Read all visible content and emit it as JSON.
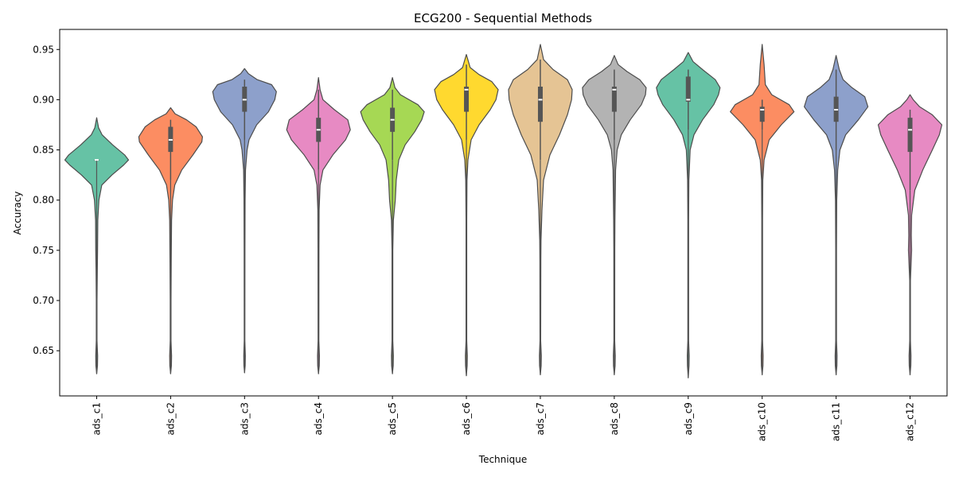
{
  "chart_data": {
    "type": "violin",
    "title": "ECG200 - Sequential Methods",
    "xlabel": "Technique",
    "ylabel": "Accuracy",
    "ylim": [
      0.605,
      0.97
    ],
    "yticks": [
      0.65,
      0.7,
      0.75,
      0.8,
      0.85,
      0.9,
      0.95
    ],
    "ytick_labels": [
      "0.65",
      "0.70",
      "0.75",
      "0.80",
      "0.85",
      "0.90",
      "0.95"
    ],
    "grid": false,
    "categories": [
      "ads_c1",
      "ads_c2",
      "ads_c3",
      "ads_c4",
      "ads_c5",
      "ads_c6",
      "ads_c7",
      "ads_c8",
      "ads_c9",
      "ads_c10",
      "ads_c11",
      "ads_c12"
    ],
    "colors": [
      "#66c2a5",
      "#fc8d62",
      "#8da0cb",
      "#e78ac3",
      "#a6d854",
      "#ffd92f",
      "#e5c494",
      "#b3b3b3",
      "#66c2a5",
      "#fc8d62",
      "#8da0cb",
      "#e78ac3"
    ],
    "violins": [
      {
        "min": 0.64,
        "q1": 0.84,
        "median": 0.84,
        "q3": 0.84,
        "max": 0.87,
        "whisker_low": 0.84,
        "whisker_high": 0.84,
        "tail_low": 0.627,
        "tail_high": 0.882,
        "density": [
          [
            0.627,
            0
          ],
          [
            0.635,
            0.025
          ],
          [
            0.645,
            0.03
          ],
          [
            0.66,
            0.012
          ],
          [
            0.7,
            0.012
          ],
          [
            0.73,
            0.02
          ],
          [
            0.75,
            0.028
          ],
          [
            0.78,
            0.035
          ],
          [
            0.8,
            0.07
          ],
          [
            0.815,
            0.16
          ],
          [
            0.825,
            0.48
          ],
          [
            0.835,
            0.85
          ],
          [
            0.84,
            1.0
          ],
          [
            0.845,
            0.88
          ],
          [
            0.855,
            0.5
          ],
          [
            0.865,
            0.17
          ],
          [
            0.872,
            0.06
          ],
          [
            0.882,
            0
          ]
        ]
      },
      {
        "min": 0.64,
        "q1": 0.848,
        "median": 0.86,
        "q3": 0.873,
        "max": 0.88,
        "whisker_low": 0.82,
        "whisker_high": 0.88,
        "tail_low": 0.627,
        "tail_high": 0.892,
        "density": [
          [
            0.627,
            0
          ],
          [
            0.635,
            0.025
          ],
          [
            0.645,
            0.03
          ],
          [
            0.66,
            0.012
          ],
          [
            0.7,
            0.012
          ],
          [
            0.74,
            0.02
          ],
          [
            0.78,
            0.03
          ],
          [
            0.8,
            0.06
          ],
          [
            0.815,
            0.13
          ],
          [
            0.83,
            0.35
          ],
          [
            0.845,
            0.7
          ],
          [
            0.858,
            0.98
          ],
          [
            0.863,
            1.0
          ],
          [
            0.873,
            0.8
          ],
          [
            0.88,
            0.5
          ],
          [
            0.886,
            0.14
          ],
          [
            0.892,
            0
          ]
        ]
      },
      {
        "min": 0.64,
        "q1": 0.888,
        "median": 0.9,
        "q3": 0.913,
        "max": 0.92,
        "whisker_low": 0.86,
        "whisker_high": 0.92,
        "tail_low": 0.628,
        "tail_high": 0.931,
        "density": [
          [
            0.628,
            0
          ],
          [
            0.635,
            0.02
          ],
          [
            0.645,
            0.025
          ],
          [
            0.66,
            0.01
          ],
          [
            0.75,
            0.012
          ],
          [
            0.8,
            0.018
          ],
          [
            0.83,
            0.03
          ],
          [
            0.85,
            0.08
          ],
          [
            0.86,
            0.14
          ],
          [
            0.875,
            0.38
          ],
          [
            0.888,
            0.75
          ],
          [
            0.9,
            0.95
          ],
          [
            0.908,
            1.0
          ],
          [
            0.915,
            0.85
          ],
          [
            0.92,
            0.4
          ],
          [
            0.926,
            0.12
          ],
          [
            0.931,
            0
          ]
        ]
      },
      {
        "min": 0.64,
        "q1": 0.858,
        "median": 0.87,
        "q3": 0.882,
        "max": 0.91,
        "whisker_low": 0.83,
        "whisker_high": 0.91,
        "tail_low": 0.627,
        "tail_high": 0.922,
        "density": [
          [
            0.627,
            0
          ],
          [
            0.635,
            0.025
          ],
          [
            0.645,
            0.03
          ],
          [
            0.66,
            0.012
          ],
          [
            0.75,
            0.015
          ],
          [
            0.79,
            0.02
          ],
          [
            0.815,
            0.05
          ],
          [
            0.83,
            0.14
          ],
          [
            0.845,
            0.45
          ],
          [
            0.86,
            0.85
          ],
          [
            0.87,
            1.0
          ],
          [
            0.88,
            0.92
          ],
          [
            0.89,
            0.5
          ],
          [
            0.9,
            0.14
          ],
          [
            0.91,
            0.05
          ],
          [
            0.922,
            0
          ]
        ]
      },
      {
        "min": 0.64,
        "q1": 0.868,
        "median": 0.88,
        "q3": 0.892,
        "max": 0.91,
        "whisker_low": 0.84,
        "whisker_high": 0.91,
        "tail_low": 0.627,
        "tail_high": 0.922,
        "density": [
          [
            0.627,
            0
          ],
          [
            0.635,
            0.025
          ],
          [
            0.645,
            0.03
          ],
          [
            0.66,
            0.012
          ],
          [
            0.75,
            0.012
          ],
          [
            0.78,
            0.03
          ],
          [
            0.8,
            0.09
          ],
          [
            0.82,
            0.12
          ],
          [
            0.84,
            0.2
          ],
          [
            0.855,
            0.4
          ],
          [
            0.868,
            0.7
          ],
          [
            0.88,
            0.92
          ],
          [
            0.888,
            1.0
          ],
          [
            0.895,
            0.8
          ],
          [
            0.905,
            0.25
          ],
          [
            0.912,
            0.08
          ],
          [
            0.922,
            0
          ]
        ]
      },
      {
        "min": 0.63,
        "q1": 0.888,
        "median": 0.91,
        "q3": 0.913,
        "max": 0.935,
        "whisker_low": 0.86,
        "whisker_high": 0.935,
        "tail_low": 0.625,
        "tail_high": 0.945,
        "density": [
          [
            0.625,
            0
          ],
          [
            0.635,
            0.025
          ],
          [
            0.645,
            0.03
          ],
          [
            0.66,
            0.012
          ],
          [
            0.78,
            0.012
          ],
          [
            0.82,
            0.02
          ],
          [
            0.84,
            0.05
          ],
          [
            0.86,
            0.15
          ],
          [
            0.875,
            0.4
          ],
          [
            0.89,
            0.75
          ],
          [
            0.9,
            0.93
          ],
          [
            0.91,
            1.0
          ],
          [
            0.918,
            0.8
          ],
          [
            0.925,
            0.4
          ],
          [
            0.932,
            0.12
          ],
          [
            0.945,
            0
          ]
        ]
      },
      {
        "min": 0.64,
        "q1": 0.878,
        "median": 0.9,
        "q3": 0.913,
        "max": 0.94,
        "whisker_low": 0.84,
        "whisker_high": 0.94,
        "tail_low": 0.626,
        "tail_high": 0.955,
        "density": [
          [
            0.626,
            0
          ],
          [
            0.635,
            0.025
          ],
          [
            0.645,
            0.03
          ],
          [
            0.66,
            0.012
          ],
          [
            0.74,
            0.015
          ],
          [
            0.76,
            0.02
          ],
          [
            0.79,
            0.05
          ],
          [
            0.82,
            0.1
          ],
          [
            0.845,
            0.3
          ],
          [
            0.865,
            0.6
          ],
          [
            0.885,
            0.85
          ],
          [
            0.9,
            0.98
          ],
          [
            0.91,
            1.0
          ],
          [
            0.92,
            0.85
          ],
          [
            0.93,
            0.4
          ],
          [
            0.94,
            0.1
          ],
          [
            0.955,
            0
          ]
        ]
      },
      {
        "min": 0.64,
        "q1": 0.888,
        "median": 0.91,
        "q3": 0.913,
        "max": 0.93,
        "whisker_low": 0.86,
        "whisker_high": 0.93,
        "tail_low": 0.626,
        "tail_high": 0.944,
        "density": [
          [
            0.626,
            0
          ],
          [
            0.635,
            0.025
          ],
          [
            0.645,
            0.03
          ],
          [
            0.66,
            0.012
          ],
          [
            0.75,
            0.015
          ],
          [
            0.78,
            0.02
          ],
          [
            0.83,
            0.04
          ],
          [
            0.85,
            0.09
          ],
          [
            0.865,
            0.22
          ],
          [
            0.88,
            0.5
          ],
          [
            0.895,
            0.85
          ],
          [
            0.905,
            0.98
          ],
          [
            0.912,
            1.0
          ],
          [
            0.92,
            0.8
          ],
          [
            0.928,
            0.4
          ],
          [
            0.935,
            0.12
          ],
          [
            0.944,
            0
          ]
        ]
      },
      {
        "min": 0.63,
        "q1": 0.898,
        "median": 0.9,
        "q3": 0.923,
        "max": 0.93,
        "whisker_low": 0.87,
        "whisker_high": 0.93,
        "tail_low": 0.623,
        "tail_high": 0.947,
        "density": [
          [
            0.623,
            0
          ],
          [
            0.635,
            0.025
          ],
          [
            0.645,
            0.03
          ],
          [
            0.66,
            0.012
          ],
          [
            0.78,
            0.012
          ],
          [
            0.82,
            0.02
          ],
          [
            0.85,
            0.06
          ],
          [
            0.865,
            0.18
          ],
          [
            0.88,
            0.45
          ],
          [
            0.895,
            0.8
          ],
          [
            0.905,
            0.95
          ],
          [
            0.912,
            1.0
          ],
          [
            0.92,
            0.85
          ],
          [
            0.93,
            0.45
          ],
          [
            0.938,
            0.15
          ],
          [
            0.947,
            0
          ]
        ]
      },
      {
        "min": 0.64,
        "q1": 0.878,
        "median": 0.89,
        "q3": 0.893,
        "max": 0.9,
        "whisker_low": 0.87,
        "whisker_high": 0.9,
        "tail_low": 0.626,
        "tail_high": 0.955,
        "density": [
          [
            0.626,
            0
          ],
          [
            0.635,
            0.025
          ],
          [
            0.645,
            0.03
          ],
          [
            0.66,
            0.012
          ],
          [
            0.78,
            0.012
          ],
          [
            0.82,
            0.02
          ],
          [
            0.84,
            0.06
          ],
          [
            0.86,
            0.22
          ],
          [
            0.875,
            0.6
          ],
          [
            0.888,
            1.0
          ],
          [
            0.895,
            0.85
          ],
          [
            0.905,
            0.3
          ],
          [
            0.915,
            0.1
          ],
          [
            0.925,
            0.08
          ],
          [
            0.935,
            0.06
          ],
          [
            0.945,
            0.03
          ],
          [
            0.955,
            0
          ]
        ]
      },
      {
        "min": 0.64,
        "q1": 0.878,
        "median": 0.89,
        "q3": 0.903,
        "max": 0.93,
        "whisker_low": 0.85,
        "whisker_high": 0.93,
        "tail_low": 0.626,
        "tail_high": 0.944,
        "density": [
          [
            0.626,
            0
          ],
          [
            0.635,
            0.025
          ],
          [
            0.645,
            0.03
          ],
          [
            0.66,
            0.012
          ],
          [
            0.75,
            0.012
          ],
          [
            0.8,
            0.02
          ],
          [
            0.83,
            0.05
          ],
          [
            0.85,
            0.12
          ],
          [
            0.865,
            0.3
          ],
          [
            0.88,
            0.7
          ],
          [
            0.893,
            1.0
          ],
          [
            0.903,
            0.9
          ],
          [
            0.912,
            0.5
          ],
          [
            0.92,
            0.22
          ],
          [
            0.93,
            0.1
          ],
          [
            0.944,
            0
          ]
        ]
      },
      {
        "min": 0.64,
        "q1": 0.848,
        "median": 0.87,
        "q3": 0.882,
        "max": 0.89,
        "whisker_low": 0.81,
        "whisker_high": 0.89,
        "tail_low": 0.626,
        "tail_high": 0.905,
        "density": [
          [
            0.626,
            0
          ],
          [
            0.635,
            0.025
          ],
          [
            0.645,
            0.03
          ],
          [
            0.66,
            0.012
          ],
          [
            0.72,
            0.012
          ],
          [
            0.75,
            0.05
          ],
          [
            0.765,
            0.04
          ],
          [
            0.785,
            0.05
          ],
          [
            0.81,
            0.15
          ],
          [
            0.83,
            0.4
          ],
          [
            0.85,
            0.7
          ],
          [
            0.865,
            0.92
          ],
          [
            0.875,
            1.0
          ],
          [
            0.885,
            0.7
          ],
          [
            0.893,
            0.3
          ],
          [
            0.9,
            0.1
          ],
          [
            0.905,
            0
          ]
        ]
      }
    ]
  }
}
